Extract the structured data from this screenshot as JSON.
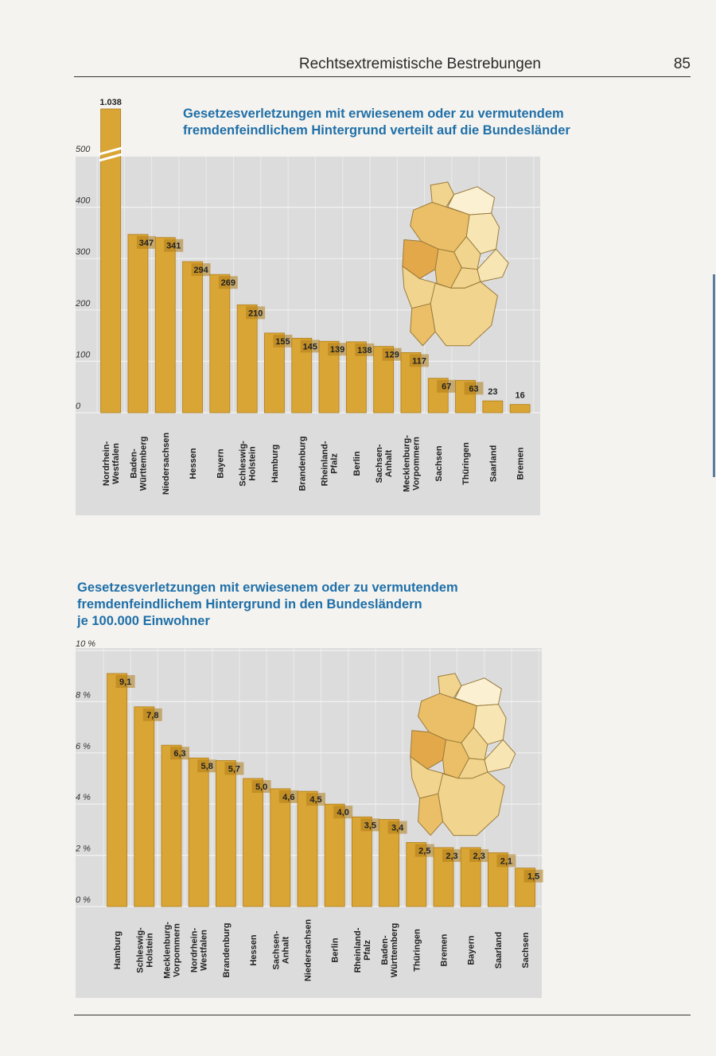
{
  "page": {
    "header_title": "Rechtsextremistische Bestrebungen",
    "page_number": "85"
  },
  "colors": {
    "bar": "#d9a534",
    "bar_dark": "#b07d1a",
    "plot_bg": "#dcdcdc",
    "title": "#1f6fa8",
    "map_states": [
      "#e2a84a",
      "#eabf67",
      "#f1d48d",
      "#f7e6b4",
      "#fbf1d2"
    ]
  },
  "chart_data": [
    {
      "type": "bar",
      "title_lines": [
        "Gesetzesverletzungen mit erwiesenem oder zu vermutendem",
        "fremdenfeindlichem Hintergrund verteilt auf die Bundesländer"
      ],
      "categories": [
        "Nordrhein-Westfalen",
        "Baden-Württemberg",
        "Niedersachsen",
        "Hessen",
        "Bayern",
        "Schleswig-Holstein",
        "Hamburg",
        "Brandenburg",
        "Rheinland-Pfalz",
        "Berlin",
        "Sachsen-Anhalt",
        "Mecklenburg-Vorpommern",
        "Sachsen",
        "Thüringen",
        "Saarland",
        "Bremen"
      ],
      "category_lines": [
        [
          "Nordrhein-",
          "Westfalen"
        ],
        [
          "Baden-",
          "Württemberg"
        ],
        [
          "Niedersachsen"
        ],
        [
          "Hessen"
        ],
        [
          "Bayern"
        ],
        [
          "Schleswig-",
          "Holstein"
        ],
        [
          "Hamburg"
        ],
        [
          "Brandenburg"
        ],
        [
          "Rheinland-",
          "Pfalz"
        ],
        [
          "Berlin"
        ],
        [
          "Sachsen-",
          "Anhalt"
        ],
        [
          "Mecklenburg-",
          "Vorpommern"
        ],
        [
          "Sachsen"
        ],
        [
          "Thüringen"
        ],
        [
          "Saarland"
        ],
        [
          "Bremen"
        ]
      ],
      "values": [
        1038,
        347,
        341,
        294,
        269,
        210,
        155,
        145,
        139,
        138,
        129,
        117,
        67,
        63,
        23,
        16
      ],
      "value_labels": [
        "1.038",
        "347",
        "341",
        "294",
        "269",
        "210",
        "155",
        "145",
        "139",
        "138",
        "129",
        "117",
        "67",
        "63",
        "23",
        "16"
      ],
      "ylim": [
        0,
        500
      ],
      "yticks": [
        0,
        100,
        200,
        300,
        400,
        500
      ],
      "ytick_labels": [
        "0",
        "100",
        "200",
        "300",
        "400",
        "500"
      ],
      "broken_axis": true,
      "grid": true,
      "inset": "map-of-germany"
    },
    {
      "type": "bar",
      "title_lines": [
        "Gesetzesverletzungen mit erwiesenem oder zu vermutendem",
        "fremdenfeindlichem Hintergrund in den Bundesländern",
        "je 100.000 Einwohner"
      ],
      "categories": [
        "Hamburg",
        "Schleswig-Holstein",
        "Mecklenburg-Vorpommern",
        "Nordrhein-Westfalen",
        "Brandenburg",
        "Hessen",
        "Sachsen-Anhalt",
        "Niedersachsen",
        "Berlin",
        "Rheinland-Pfalz",
        "Baden-Württemberg",
        "Thüringen",
        "Bremen",
        "Bayern",
        "Saarland",
        "Sachsen"
      ],
      "category_lines": [
        [
          "Hamburg"
        ],
        [
          "Schleswig-",
          "Holstein"
        ],
        [
          "Mecklenburg-",
          "Vorpommern"
        ],
        [
          "Nordrhein-",
          "Westfalen"
        ],
        [
          "Brandenburg"
        ],
        [
          "Hessen"
        ],
        [
          "Sachsen-",
          "Anhalt"
        ],
        [
          "Niedersachsen"
        ],
        [
          "Berlin"
        ],
        [
          "Rheinland-",
          "Pfalz"
        ],
        [
          "Baden-",
          "Württemberg"
        ],
        [
          "Thüringen"
        ],
        [
          "Bremen"
        ],
        [
          "Bayern"
        ],
        [
          "Saarland"
        ],
        [
          "Sachsen"
        ]
      ],
      "values": [
        9.1,
        7.8,
        6.3,
        5.8,
        5.7,
        5.0,
        4.6,
        4.5,
        4.0,
        3.5,
        3.4,
        2.5,
        2.3,
        2.3,
        2.1,
        1.5
      ],
      "value_labels": [
        "9,1",
        "7,8",
        "6,3",
        "5,8",
        "5,7",
        "5,0",
        "4,6",
        "4,5",
        "4,0",
        "3,5",
        "3,4",
        "2,5",
        "2,3",
        "2,3",
        "2,1",
        "1,5"
      ],
      "ylim": [
        0,
        10
      ],
      "yticks": [
        0,
        2,
        4,
        6,
        8,
        10
      ],
      "ytick_labels": [
        "0 %",
        "2 %",
        "4 %",
        "6 %",
        "8 %",
        "10 %"
      ],
      "grid": true,
      "inset": "map-of-germany"
    }
  ]
}
